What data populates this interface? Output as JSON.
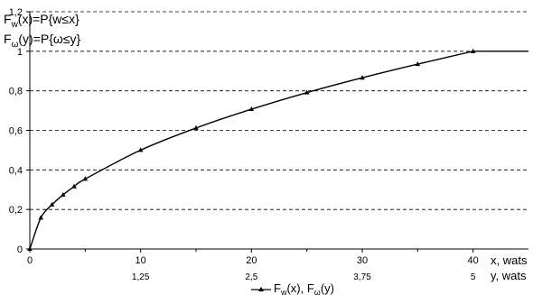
{
  "chart_data": {
    "type": "line",
    "title": "",
    "annotations": [
      {
        "main": "F",
        "sub": "w",
        "rest": "(x)=P{w≤x}"
      },
      {
        "main": "F",
        "sub": "ω",
        "rest": "(y)=P{ω≤y}"
      }
    ],
    "xlabel": "x, wats",
    "x2label": "y, wats",
    "ylabel": "",
    "xlim": [
      0,
      45
    ],
    "ylim": [
      0,
      1.2
    ],
    "x_ticks": [
      0,
      10,
      20,
      30,
      40
    ],
    "x_tick_labels": [
      "0",
      "10",
      "20",
      "30",
      "40"
    ],
    "x2_ticks": [
      10,
      20,
      30,
      40
    ],
    "x2_tick_labels": [
      "1,25",
      "2,5",
      "3,75",
      "5"
    ],
    "y_ticks": [
      0,
      0.2,
      0.4,
      0.6,
      0.8,
      1.0,
      1.2
    ],
    "y_tick_labels": [
      "0",
      "0,2",
      "0,4",
      "0,6",
      "0,8",
      "1",
      "1,2"
    ],
    "grid": {
      "horizontal": true,
      "style": "dashed"
    },
    "legend_position": "bottom",
    "series": [
      {
        "legend": {
          "main": "F",
          "sub": "w",
          "mid": "(x), F",
          "sub2": "ω",
          "rest": "(y)"
        },
        "color": "#000000",
        "marker": "triangle",
        "x": [
          0,
          1,
          2,
          3,
          4,
          5,
          10,
          15,
          20,
          25,
          30,
          35,
          40,
          45
        ],
        "y": [
          0,
          0.158,
          0.224,
          0.274,
          0.316,
          0.354,
          0.5,
          0.612,
          0.707,
          0.791,
          0.866,
          0.935,
          1.0,
          1.0
        ],
        "markers_at": [
          0,
          1,
          2,
          3,
          4,
          5,
          10,
          15,
          20,
          25,
          30,
          35,
          40
        ]
      }
    ]
  }
}
